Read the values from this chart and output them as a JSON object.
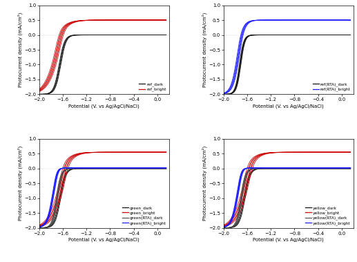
{
  "xlim": [
    -2.0,
    0.2
  ],
  "ylim": [
    -2.0,
    1.0
  ],
  "xlabel": "Potential (V. vs Ag/AgCl/NaCl)",
  "ylabel": "Photocurrent density (mA/cm²)",
  "xticks": [
    -2.0,
    -1.6,
    -1.2,
    -0.8,
    -0.4,
    0.0
  ],
  "yticks": [
    -2.0,
    -1.5,
    -1.0,
    -0.5,
    0.0,
    0.5,
    1.0
  ],
  "subplots": [
    {
      "legends": [
        {
          "label": "ref_dark",
          "color": "#111111"
        },
        {
          "label": "ref_bright",
          "color": "#cc0000"
        }
      ]
    },
    {
      "legends": [
        {
          "label": "ref(RTA)_dark",
          "color": "#111111"
        },
        {
          "label": "ref(RTA)_bright",
          "color": "#1a1aff"
        }
      ]
    },
    {
      "legends": [
        {
          "label": "green_dark",
          "color": "#111111"
        },
        {
          "label": "green_bright",
          "color": "#cc0000"
        },
        {
          "label": "green(RTA)_dark",
          "color": "#555555"
        },
        {
          "label": "green(RTA)_bright",
          "color": "#1a1aff"
        }
      ]
    },
    {
      "legends": [
        {
          "label": "yellow_dark",
          "color": "#111111"
        },
        {
          "label": "yellow_bright",
          "color": "#cc0000"
        },
        {
          "label": "yellow(RTA)_dark",
          "color": "#555555"
        },
        {
          "label": "yellow(RTA)_bright",
          "color": "#1a1aff"
        }
      ]
    }
  ]
}
